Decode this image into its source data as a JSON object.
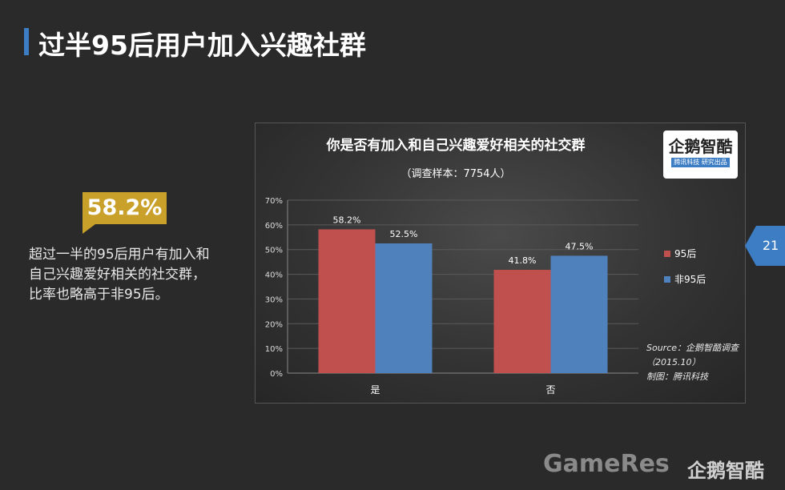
{
  "page": {
    "title": "过半95后用户加入兴趣社群",
    "highlight_value": "58.2%",
    "description_lines": [
      "超过一半的95后用户有加入和",
      "自己兴趣爱好相关的社交群，",
      "比率也略高于非95后。"
    ],
    "page_number": "21"
  },
  "logo": {
    "main": "企鹅智酷",
    "sub": "腾讯科技  研究出品"
  },
  "watermark": {
    "text": "GameRes",
    "brand": "企鹅智酷"
  },
  "colors": {
    "accent": "#3c7dc4",
    "callout": "#c9a02a",
    "series_95": "#c0504d",
    "series_non95": "#4f81bd"
  },
  "chart_data": {
    "type": "bar",
    "title": "你是否有加入和自己兴趣爱好相关的社交群",
    "subtitle": "（调查样本：7754人）",
    "categories": [
      "是",
      "否"
    ],
    "series": [
      {
        "name": "95后",
        "values": [
          58.2,
          41.8
        ],
        "labels": [
          "58.2%",
          "41.8%"
        ]
      },
      {
        "name": "非95后",
        "values": [
          52.5,
          47.5
        ],
        "labels": [
          "52.5%",
          "47.5%"
        ]
      }
    ],
    "ylim": [
      0,
      70
    ],
    "yticks": [
      "0%",
      "10%",
      "20%",
      "30%",
      "40%",
      "50%",
      "60%",
      "70%"
    ],
    "legend_position": "right",
    "grid": true,
    "source_lines": [
      "Source：企鹅智酷调查",
      "（2015.10）",
      "制图：腾讯科技"
    ]
  }
}
